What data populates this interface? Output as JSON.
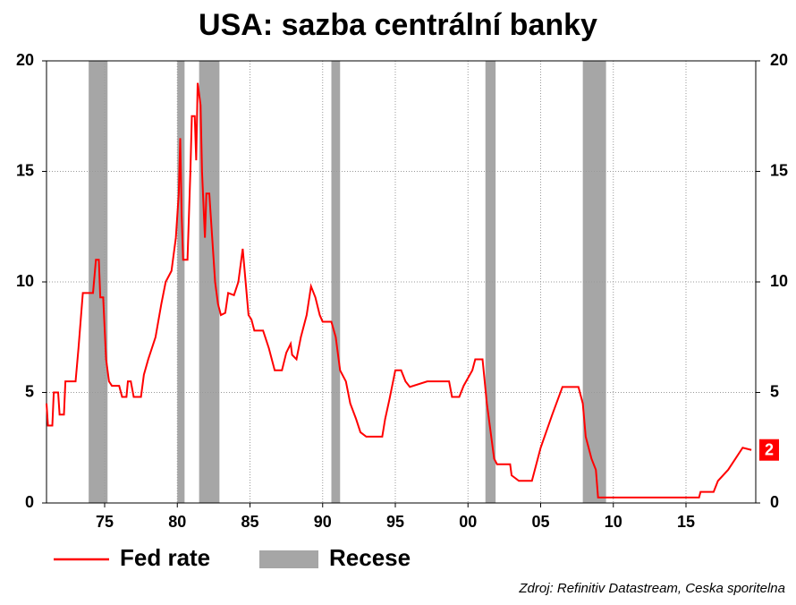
{
  "chart_data": {
    "type": "line",
    "title": "USA: sazba centrální banky",
    "source": "Zdroj: Refinitiv Datastream, Ceska sporitelna",
    "end_label": "2",
    "xlim": [
      1971,
      2019.8
    ],
    "xticks": [
      {
        "value": 1975,
        "label": "75"
      },
      {
        "value": 1980,
        "label": "80"
      },
      {
        "value": 1985,
        "label": "85"
      },
      {
        "value": 1990,
        "label": "90"
      },
      {
        "value": 1995,
        "label": "95"
      },
      {
        "value": 2000,
        "label": "00"
      },
      {
        "value": 2005,
        "label": "05"
      },
      {
        "value": 2010,
        "label": "10"
      },
      {
        "value": 2015,
        "label": "15"
      }
    ],
    "ylim": [
      0,
      20
    ],
    "yticks": [
      0,
      5,
      10,
      15,
      20
    ],
    "y2lim": [
      0,
      20
    ],
    "y2ticks": [
      0,
      5,
      10,
      15,
      20
    ],
    "grid": true,
    "legend": "bottom",
    "recession_name": "Recese",
    "recession_color": "#a6a6a6",
    "recessions": [
      [
        1973.9,
        1975.2
      ],
      [
        1980.0,
        1980.5
      ],
      [
        1981.5,
        1982.9
      ],
      [
        1990.6,
        1991.2
      ],
      [
        2001.2,
        2001.9
      ],
      [
        2007.9,
        2009.5
      ]
    ],
    "series": [
      {
        "name": "Fed rate",
        "color": "#ff0000",
        "x": [
          1971.0,
          1971.1,
          1971.4,
          1971.5,
          1971.8,
          1971.9,
          1972.2,
          1972.3,
          1973.0,
          1973.2,
          1973.5,
          1974.2,
          1974.4,
          1974.6,
          1974.7,
          1974.9,
          1975.1,
          1975.3,
          1975.5,
          1976.0,
          1976.2,
          1976.5,
          1976.6,
          1976.8,
          1977.0,
          1977.5,
          1977.7,
          1978.0,
          1978.5,
          1978.9,
          1979.2,
          1979.6,
          1979.9,
          1980.1,
          1980.2,
          1980.3,
          1980.4,
          1980.7,
          1980.9,
          1981.0,
          1981.2,
          1981.3,
          1981.4,
          1981.6,
          1981.7,
          1981.9,
          1982.0,
          1982.2,
          1982.4,
          1982.6,
          1982.8,
          1983.0,
          1983.3,
          1983.5,
          1983.9,
          1984.2,
          1984.5,
          1984.7,
          1984.9,
          1985.1,
          1985.3,
          1985.9,
          1986.3,
          1986.7,
          1987.2,
          1987.5,
          1987.8,
          1987.9,
          1988.2,
          1988.5,
          1988.9,
          1989.2,
          1989.5,
          1989.8,
          1990.0,
          1990.6,
          1990.9,
          1991.2,
          1991.6,
          1991.9,
          1992.3,
          1992.6,
          1993.0,
          1994.1,
          1994.3,
          1994.6,
          1995.0,
          1995.4,
          1995.7,
          1996.0,
          1997.2,
          1998.7,
          1998.9,
          1999.4,
          1999.7,
          2000.3,
          2000.5,
          2001.0,
          2001.3,
          2001.8,
          2002.0,
          2002.9,
          2003.0,
          2003.5,
          2004.4,
          2005.0,
          2005.8,
          2006.5,
          2007.6,
          2007.9,
          2008.1,
          2008.5,
          2008.8,
          2008.95,
          2015.9,
          2016.0,
          2016.9,
          2017.2,
          2017.9,
          2018.9,
          2019.5
        ],
        "values": [
          4.5,
          3.5,
          3.5,
          5,
          5,
          4,
          4,
          5.5,
          5.5,
          7,
          9.5,
          9.5,
          11,
          11,
          9.3,
          9.3,
          6.5,
          5.5,
          5.3,
          5.3,
          4.8,
          4.8,
          5.5,
          5.5,
          4.8,
          4.8,
          5.8,
          6.5,
          7.5,
          9,
          10,
          10.5,
          12,
          14,
          16.5,
          13,
          11,
          11,
          15,
          17.5,
          17.5,
          15.5,
          19,
          18,
          15,
          12,
          14,
          14,
          12,
          10,
          9,
          8.5,
          8.6,
          9.5,
          9.4,
          10,
          11.5,
          10,
          8.5,
          8.3,
          7.8,
          7.8,
          7,
          6,
          6,
          6.8,
          7.2,
          6.7,
          6.5,
          7.5,
          8.5,
          9.8,
          9.3,
          8.5,
          8.2,
          8.2,
          7.5,
          6,
          5.5,
          4.5,
          3.8,
          3.2,
          3,
          3,
          3.8,
          4.7,
          6,
          6,
          5.5,
          5.25,
          5.5,
          5.5,
          4.8,
          4.8,
          5.3,
          6,
          6.5,
          6.5,
          4.5,
          2,
          1.75,
          1.75,
          1.25,
          1,
          1,
          2.5,
          4,
          5.25,
          5.25,
          4.5,
          3,
          2,
          1.5,
          0.25,
          0.25,
          0.5,
          0.5,
          1,
          1.5,
          2.5,
          2.4
        ]
      }
    ]
  }
}
